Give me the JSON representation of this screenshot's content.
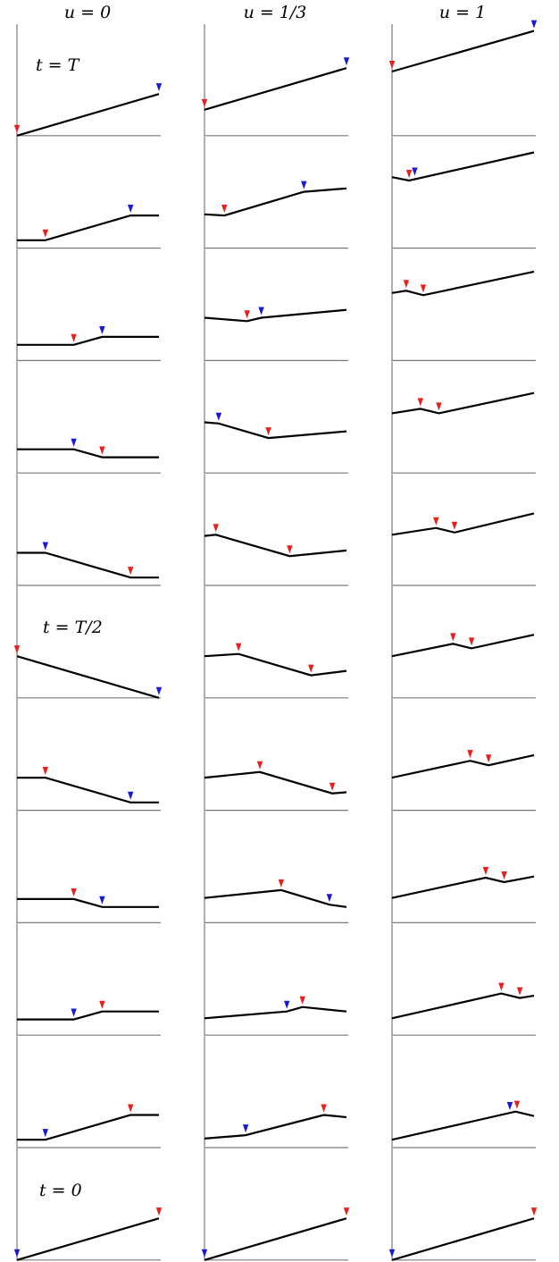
{
  "figure": {
    "columns": [
      "u = 0",
      "u = 1/3",
      "u = 1"
    ],
    "row_labels": [
      {
        "row": 0,
        "col": 0,
        "text": "t = T"
      },
      {
        "row": 5,
        "col": 0,
        "text": "t = T/2"
      },
      {
        "row": 10,
        "col": 0,
        "text": "t = 0"
      }
    ],
    "colors": {
      "red_marker": "#e8201c",
      "blue_marker": "#1a1ad6",
      "curve": "#000000",
      "axis": "#7a7a7a"
    },
    "marker_icon": "down-triangle-icon",
    "panels": [
      [
        {
          "curve": [
            [
              0,
              0
            ],
            [
              1,
              0.37
            ]
          ],
          "markers": [
            {
              "x": 0,
              "y": 0,
              "c": "red"
            },
            {
              "x": 1,
              "y": 0.37,
              "c": "blue"
            }
          ]
        },
        {
          "curve": [
            [
              0,
              0.07
            ],
            [
              0.2,
              0.07
            ],
            [
              0.8,
              0.29
            ],
            [
              1,
              0.29
            ]
          ],
          "markers": [
            {
              "x": 0.2,
              "y": 0.07,
              "c": "red"
            },
            {
              "x": 0.8,
              "y": 0.29,
              "c": "blue"
            }
          ]
        },
        {
          "curve": [
            [
              0,
              0.14
            ],
            [
              0.4,
              0.14
            ],
            [
              0.6,
              0.21
            ],
            [
              1,
              0.21
            ]
          ],
          "markers": [
            {
              "x": 0.4,
              "y": 0.14,
              "c": "red"
            },
            {
              "x": 0.6,
              "y": 0.21,
              "c": "blue"
            }
          ]
        },
        {
          "curve": [
            [
              0,
              0.21
            ],
            [
              0.4,
              0.21
            ],
            [
              0.6,
              0.14
            ],
            [
              1,
              0.14
            ]
          ],
          "markers": [
            {
              "x": 0.4,
              "y": 0.21,
              "c": "blue"
            },
            {
              "x": 0.6,
              "y": 0.14,
              "c": "red"
            }
          ]
        },
        {
          "curve": [
            [
              0,
              0.29
            ],
            [
              0.2,
              0.29
            ],
            [
              0.8,
              0.07
            ],
            [
              1,
              0.07
            ]
          ],
          "markers": [
            {
              "x": 0.2,
              "y": 0.29,
              "c": "blue"
            },
            {
              "x": 0.8,
              "y": 0.07,
              "c": "red"
            }
          ]
        },
        {
          "curve": [
            [
              0,
              0.37
            ],
            [
              1,
              0
            ]
          ],
          "markers": [
            {
              "x": 0,
              "y": 0.37,
              "c": "red"
            },
            {
              "x": 1,
              "y": 0,
              "c": "blue"
            }
          ]
        },
        {
          "curve": [
            [
              0,
              0.29
            ],
            [
              0.2,
              0.29
            ],
            [
              0.8,
              0.07
            ],
            [
              1,
              0.07
            ]
          ],
          "markers": [
            {
              "x": 0.2,
              "y": 0.29,
              "c": "red"
            },
            {
              "x": 0.8,
              "y": 0.07,
              "c": "blue"
            }
          ]
        },
        {
          "curve": [
            [
              0,
              0.21
            ],
            [
              0.4,
              0.21
            ],
            [
              0.6,
              0.14
            ],
            [
              1,
              0.14
            ]
          ],
          "markers": [
            {
              "x": 0.4,
              "y": 0.21,
              "c": "red"
            },
            {
              "x": 0.6,
              "y": 0.14,
              "c": "blue"
            }
          ]
        },
        {
          "curve": [
            [
              0,
              0.14
            ],
            [
              0.4,
              0.14
            ],
            [
              0.6,
              0.21
            ],
            [
              1,
              0.21
            ]
          ],
          "markers": [
            {
              "x": 0.4,
              "y": 0.14,
              "c": "blue"
            },
            {
              "x": 0.6,
              "y": 0.21,
              "c": "red"
            }
          ]
        },
        {
          "curve": [
            [
              0,
              0.07
            ],
            [
              0.2,
              0.07
            ],
            [
              0.8,
              0.29
            ],
            [
              1,
              0.29
            ]
          ],
          "markers": [
            {
              "x": 0.2,
              "y": 0.07,
              "c": "blue"
            },
            {
              "x": 0.8,
              "y": 0.29,
              "c": "red"
            }
          ]
        },
        {
          "curve": [
            [
              0,
              0
            ],
            [
              1,
              0.37
            ]
          ],
          "markers": [
            {
              "x": 0,
              "y": 0,
              "c": "blue"
            },
            {
              "x": 1,
              "y": 0.37,
              "c": "red"
            }
          ]
        }
      ],
      [
        {
          "curve": [
            [
              0,
              0.23
            ],
            [
              1,
              0.6
            ]
          ],
          "markers": [
            {
              "x": 0,
              "y": 0.23,
              "c": "red"
            },
            {
              "x": 1,
              "y": 0.6,
              "c": "blue"
            }
          ]
        },
        {
          "curve": [
            [
              0,
              0.3
            ],
            [
              0.14,
              0.29
            ],
            [
              0.7,
              0.5
            ],
            [
              1,
              0.53
            ]
          ],
          "markers": [
            {
              "x": 0.14,
              "y": 0.29,
              "c": "red"
            },
            {
              "x": 0.7,
              "y": 0.5,
              "c": "blue"
            }
          ]
        },
        {
          "curve": [
            [
              0,
              0.38
            ],
            [
              0.3,
              0.35
            ],
            [
              0.4,
              0.38
            ],
            [
              1,
              0.45
            ]
          ],
          "markers": [
            {
              "x": 0.3,
              "y": 0.35,
              "c": "red"
            },
            {
              "x": 0.4,
              "y": 0.38,
              "c": "blue"
            }
          ]
        },
        {
          "curve": [
            [
              0,
              0.45
            ],
            [
              0.1,
              0.44
            ],
            [
              0.45,
              0.31
            ],
            [
              1,
              0.37
            ]
          ],
          "markers": [
            {
              "x": 0.1,
              "y": 0.44,
              "c": "blue"
            },
            {
              "x": 0.45,
              "y": 0.31,
              "c": "red"
            }
          ]
        },
        {
          "curve": [
            [
              0,
              0.44
            ],
            [
              0.08,
              0.45
            ],
            [
              0.6,
              0.26
            ],
            [
              1,
              0.31
            ]
          ],
          "markers": [
            {
              "x": 0.08,
              "y": 0.45,
              "c": "red"
            },
            {
              "x": 0.6,
              "y": 0.26,
              "c": "red"
            }
          ]
        },
        {
          "curve": [
            [
              0,
              0.37
            ],
            [
              0.24,
              0.39
            ],
            [
              0.75,
              0.2
            ],
            [
              1,
              0.24
            ]
          ],
          "markers": [
            {
              "x": 0.24,
              "y": 0.39,
              "c": "red"
            },
            {
              "x": 0.75,
              "y": 0.2,
              "c": "red"
            }
          ]
        },
        {
          "curve": [
            [
              0,
              0.29
            ],
            [
              0.39,
              0.34
            ],
            [
              0.9,
              0.15
            ],
            [
              1,
              0.16
            ]
          ],
          "markers": [
            {
              "x": 0.39,
              "y": 0.34,
              "c": "red"
            },
            {
              "x": 0.9,
              "y": 0.15,
              "c": "red"
            }
          ]
        },
        {
          "curve": [
            [
              0,
              0.22
            ],
            [
              0.54,
              0.29
            ],
            [
              0.88,
              0.16
            ],
            [
              1,
              0.14
            ]
          ],
          "markers": [
            {
              "x": 0.54,
              "y": 0.29,
              "c": "red"
            },
            {
              "x": 0.88,
              "y": 0.16,
              "c": "blue"
            }
          ]
        },
        {
          "curve": [
            [
              0,
              0.15
            ],
            [
              0.58,
              0.21
            ],
            [
              0.69,
              0.25
            ],
            [
              1,
              0.21
            ]
          ],
          "markers": [
            {
              "x": 0.58,
              "y": 0.21,
              "c": "blue"
            },
            {
              "x": 0.69,
              "y": 0.25,
              "c": "red"
            }
          ]
        },
        {
          "curve": [
            [
              0,
              0.08
            ],
            [
              0.29,
              0.11
            ],
            [
              0.84,
              0.29
            ],
            [
              1,
              0.27
            ]
          ],
          "markers": [
            {
              "x": 0.29,
              "y": 0.11,
              "c": "blue"
            },
            {
              "x": 0.84,
              "y": 0.29,
              "c": "red"
            }
          ]
        },
        {
          "curve": [
            [
              0,
              0
            ],
            [
              1,
              0.37
            ]
          ],
          "markers": [
            {
              "x": 0,
              "y": 0,
              "c": "blue"
            },
            {
              "x": 1,
              "y": 0.37,
              "c": "red"
            }
          ]
        }
      ],
      [
        {
          "curve": [
            [
              0,
              0.57
            ],
            [
              1,
              0.93
            ]
          ],
          "markers": [
            {
              "x": 0,
              "y": 0.57,
              "c": "red"
            },
            {
              "x": 1,
              "y": 0.93,
              "c": "blue"
            }
          ]
        },
        {
          "curve": [
            [
              0,
              0.63
            ],
            [
              0.12,
              0.6
            ],
            [
              1,
              0.85
            ]
          ],
          "markers": [
            {
              "x": 0.12,
              "y": 0.6,
              "c": "red"
            },
            {
              "x": 0.16,
              "y": 0.62,
              "c": "blue"
            }
          ]
        },
        {
          "curve": [
            [
              0,
              0.6
            ],
            [
              0.1,
              0.62
            ],
            [
              0.22,
              0.58
            ],
            [
              1,
              0.79
            ]
          ],
          "markers": [
            {
              "x": 0.1,
              "y": 0.62,
              "c": "red"
            },
            {
              "x": 0.22,
              "y": 0.58,
              "c": "red"
            }
          ]
        },
        {
          "curve": [
            [
              0,
              0.53
            ],
            [
              0.2,
              0.57
            ],
            [
              0.33,
              0.53
            ],
            [
              1,
              0.71
            ]
          ],
          "markers": [
            {
              "x": 0.2,
              "y": 0.57,
              "c": "red"
            },
            {
              "x": 0.33,
              "y": 0.53,
              "c": "red"
            }
          ]
        },
        {
          "curve": [
            [
              0,
              0.45
            ],
            [
              0.31,
              0.51
            ],
            [
              0.44,
              0.47
            ],
            [
              1,
              0.64
            ]
          ],
          "markers": [
            {
              "x": 0.31,
              "y": 0.51,
              "c": "red"
            },
            {
              "x": 0.44,
              "y": 0.47,
              "c": "red"
            }
          ]
        },
        {
          "curve": [
            [
              0,
              0.37
            ],
            [
              0.43,
              0.48
            ],
            [
              0.56,
              0.44
            ],
            [
              1,
              0.56
            ]
          ],
          "markers": [
            {
              "x": 0.43,
              "y": 0.48,
              "c": "red"
            },
            {
              "x": 0.56,
              "y": 0.44,
              "c": "red"
            }
          ]
        },
        {
          "curve": [
            [
              0,
              0.29
            ],
            [
              0.55,
              0.44
            ],
            [
              0.68,
              0.4
            ],
            [
              1,
              0.49
            ]
          ],
          "markers": [
            {
              "x": 0.55,
              "y": 0.44,
              "c": "red"
            },
            {
              "x": 0.68,
              "y": 0.4,
              "c": "red"
            }
          ]
        },
        {
          "curve": [
            [
              0,
              0.22
            ],
            [
              0.66,
              0.4
            ],
            [
              0.79,
              0.36
            ],
            [
              1,
              0.41
            ]
          ],
          "markers": [
            {
              "x": 0.66,
              "y": 0.4,
              "c": "red"
            },
            {
              "x": 0.79,
              "y": 0.36,
              "c": "red"
            }
          ]
        },
        {
          "curve": [
            [
              0,
              0.15
            ],
            [
              0.77,
              0.37
            ],
            [
              0.9,
              0.33
            ],
            [
              1,
              0.35
            ]
          ],
          "markers": [
            {
              "x": 0.77,
              "y": 0.37,
              "c": "red"
            },
            {
              "x": 0.9,
              "y": 0.33,
              "c": "red"
            }
          ]
        },
        {
          "curve": [
            [
              0,
              0.07
            ],
            [
              0.87,
              0.32
            ],
            [
              1,
              0.28
            ]
          ],
          "markers": [
            {
              "x": 0.83,
              "y": 0.31,
              "c": "blue"
            },
            {
              "x": 0.88,
              "y": 0.32,
              "c": "red"
            }
          ]
        },
        {
          "curve": [
            [
              0,
              0
            ],
            [
              1,
              0.37
            ]
          ],
          "markers": [
            {
              "x": 0,
              "y": 0,
              "c": "blue"
            },
            {
              "x": 1,
              "y": 0.37,
              "c": "red"
            }
          ]
        }
      ]
    ]
  }
}
